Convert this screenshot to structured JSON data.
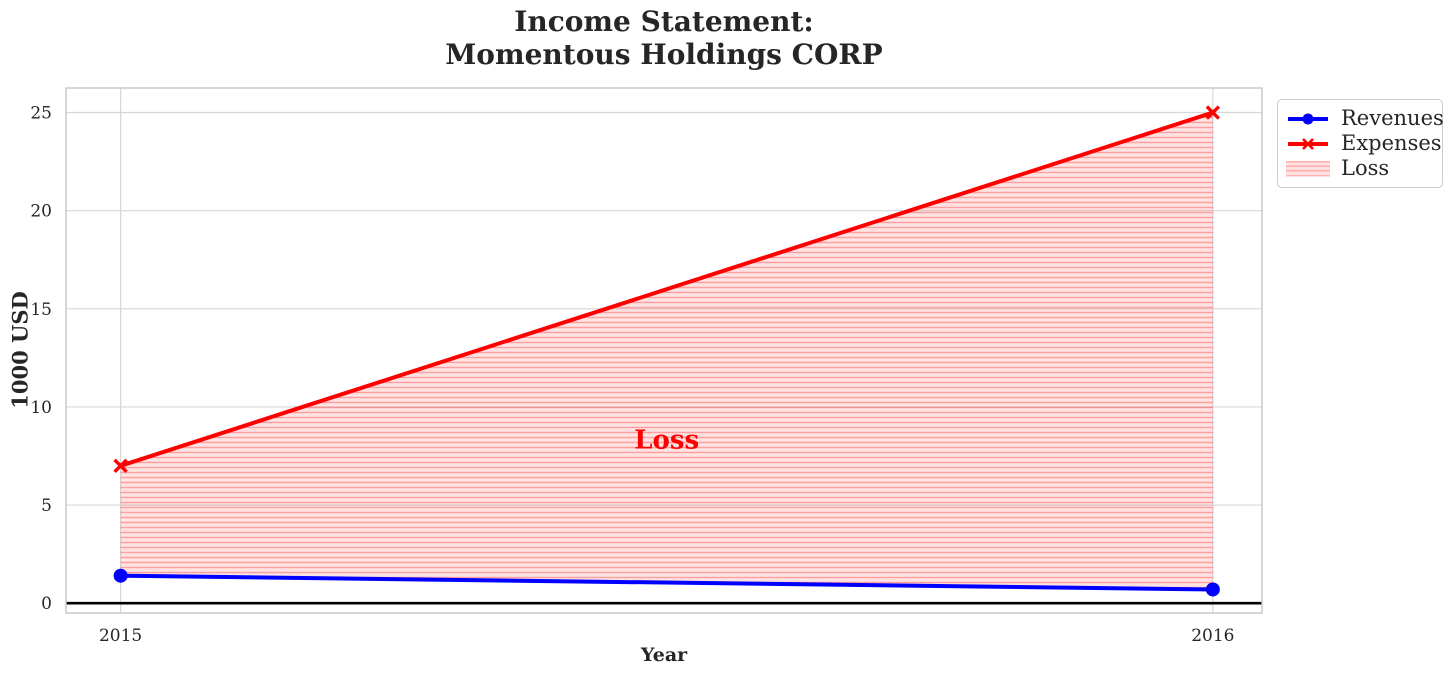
{
  "chart_data": {
    "type": "line",
    "title_lines": [
      "Income Statement:",
      "Momentous Holdings CORP"
    ],
    "xlabel": "Year",
    "ylabel": "1000 USD",
    "x": [
      2015,
      2016
    ],
    "x_tick_labels": [
      "2015",
      "2016"
    ],
    "y_ticks": [
      0,
      5,
      10,
      15,
      20,
      25
    ],
    "xlim": [
      2014.95,
      2016.045
    ],
    "ylim": [
      -0.5,
      26.25
    ],
    "grid": true,
    "series": [
      {
        "name": "Revenues",
        "color": "#0000ff",
        "marker": "circle",
        "values": [
          1.4,
          0.7
        ]
      },
      {
        "name": "Expenses",
        "color": "#ff0000",
        "marker": "x",
        "values": [
          7.0,
          25.0
        ]
      }
    ],
    "loss_fill": {
      "label": "Loss",
      "between": [
        "Expenses",
        "Revenues"
      ],
      "hatch": "horizontal",
      "hatch_bg": "rgba(255,0,0,0.11)",
      "hatch_line": "rgba(255,0,0,0.30)"
    },
    "annotation": {
      "text": "Loss",
      "x": 2015.5,
      "y": 8.4,
      "color": "#ff0000"
    },
    "zero_line": {
      "y": 0,
      "color": "#000000"
    },
    "legend": {
      "position": "upper-right-outside",
      "entries": [
        "Revenues",
        "Expenses",
        "Loss"
      ]
    },
    "colors": {
      "grid": "#d7d7d7",
      "frame": "#c9c9c9",
      "text": "#262626"
    }
  }
}
